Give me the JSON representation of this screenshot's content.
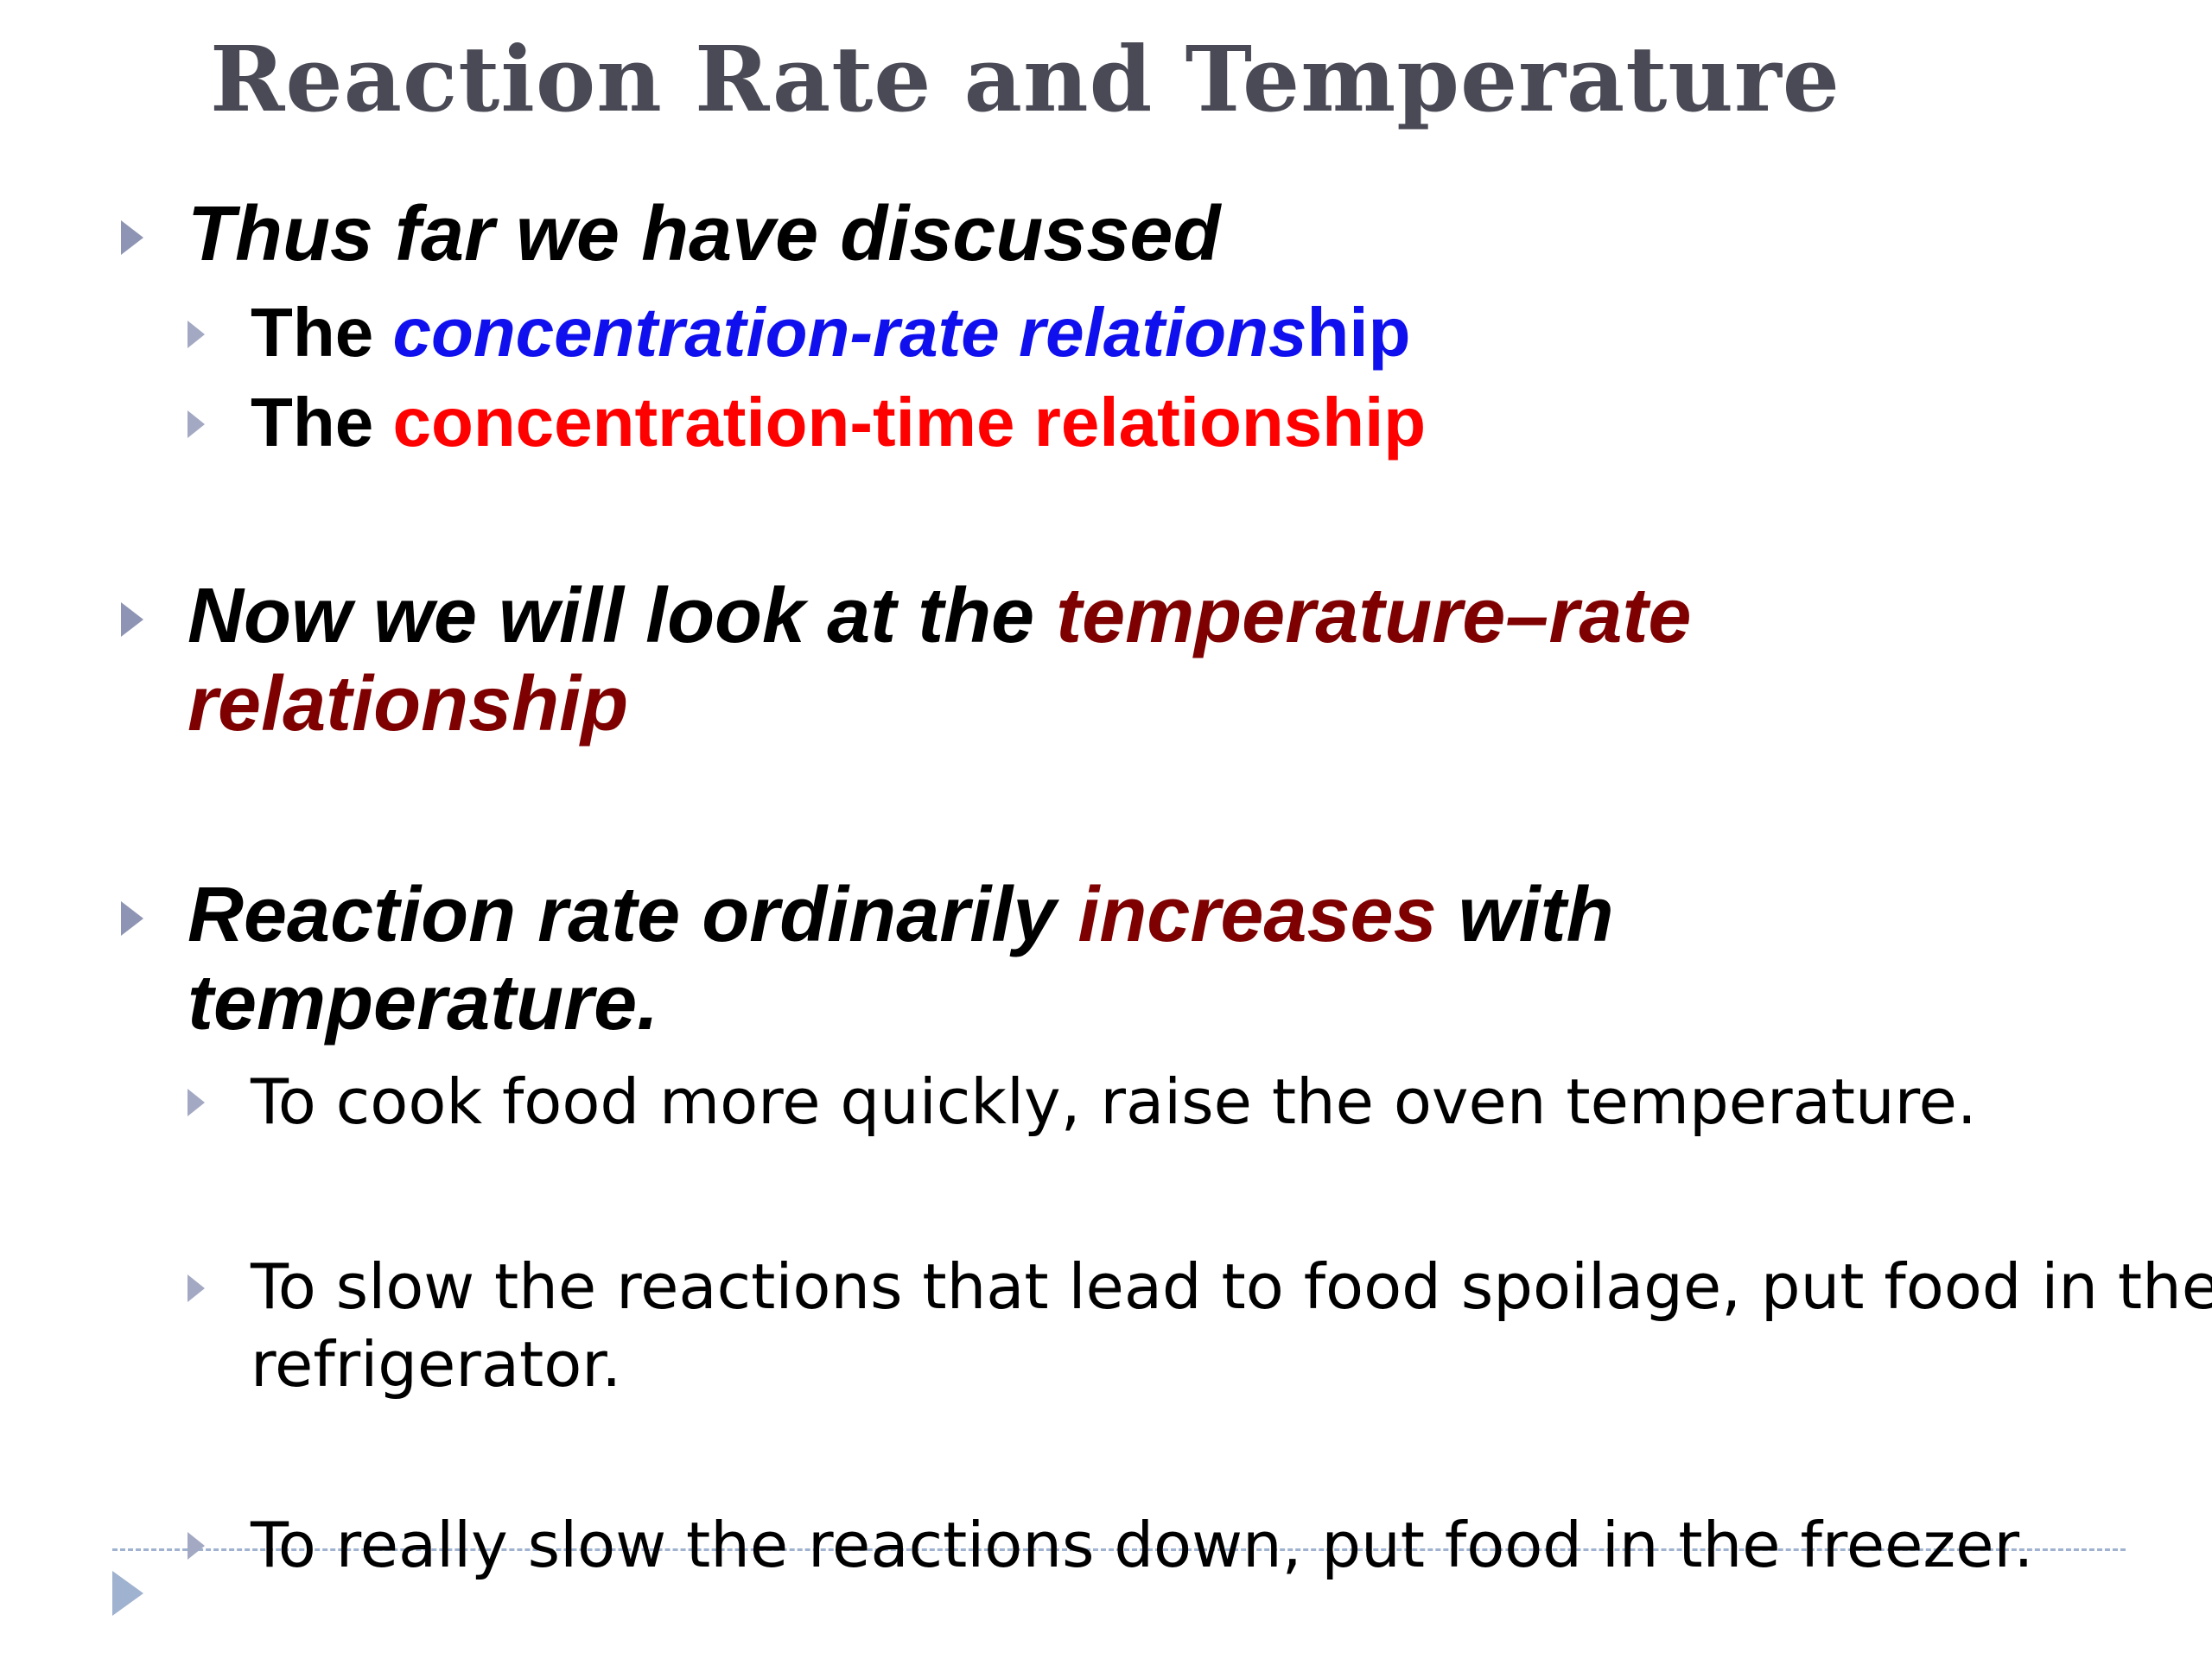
{
  "slide": {
    "title": "Reaction Rate and Temperature",
    "bullet1": {
      "text": "Thus far we have discussed",
      "sub": [
        {
          "prefix": "The ",
          "highlight": "concentration-rate relations",
          "suffix": "hip"
        },
        {
          "prefix": "The ",
          "highlight": "concentration-time relationship"
        }
      ]
    },
    "bullet2": {
      "line1_prefix": "Now we will look at the ",
      "line1_highlight": "temperature–rate",
      "line2_highlight": "relationship"
    },
    "bullet3": {
      "line1_prefix": "Reaction rate ordinarily ",
      "line1_highlight": "increases",
      "line1_suffix": " with",
      "line2": "temperature.",
      "sub": [
        {
          "line1": "To cook food more quickly, raise the oven temperature."
        },
        {
          "line1": "To slow the reactions that lead to food spoilage, put food in the",
          "line2": "refrigerator."
        },
        {
          "line1": "To really slow the reactions down, put food in the freezer."
        }
      ]
    }
  },
  "colors": {
    "title": "#4a4a56",
    "blue": "#1010ee",
    "red": "#ff0000",
    "maroon": "#7f0000",
    "bullet": "#8e95b4",
    "footer": "#9fb2cf"
  },
  "icons": {
    "bullet": "triangle-right-icon",
    "footer": "triangle-right-icon"
  }
}
